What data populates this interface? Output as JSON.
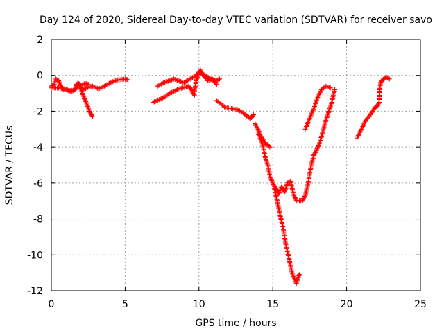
{
  "chart_data": {
    "type": "scatter",
    "title": "Day 124 of 2020, Sidereal Day-to-day VTEC variation (SDTVAR) for receiver savo",
    "xlabel": "GPS time / hours",
    "ylabel": "SDTVAR / TECUs",
    "xlim": [
      0,
      25
    ],
    "ylim": [
      -12,
      2
    ],
    "xticks": [
      0,
      5,
      10,
      15,
      20,
      25
    ],
    "yticks": [
      -12,
      -10,
      -8,
      -6,
      -4,
      -2,
      0,
      2
    ],
    "xtick_labels": [
      "0",
      "5",
      "10",
      "15",
      "20",
      "25"
    ],
    "ytick_labels": [
      "-12",
      "-10",
      "-8",
      "-6",
      "-4",
      "-2",
      "0",
      "2"
    ],
    "grid": true,
    "marker": "+",
    "series": [
      {
        "name": "SDTVAR",
        "color": "#ff0000",
        "segments": [
          [
            [
              0.0,
              -0.6
            ],
            [
              0.2,
              -0.5
            ],
            [
              0.3,
              -0.2
            ],
            [
              0.5,
              -0.3
            ],
            [
              0.7,
              -0.7
            ],
            [
              1.0,
              -0.8
            ],
            [
              1.3,
              -0.85
            ],
            [
              1.6,
              -0.8
            ],
            [
              1.7,
              -0.5
            ],
            [
              1.9,
              -0.6
            ],
            [
              2.1,
              -0.8
            ],
            [
              2.4,
              -0.7
            ],
            [
              2.8,
              -0.6
            ],
            [
              3.2,
              -0.75
            ],
            [
              3.6,
              -0.6
            ],
            [
              4.0,
              -0.4
            ],
            [
              4.5,
              -0.25
            ],
            [
              5.0,
              -0.2
            ],
            [
              5.2,
              -0.25
            ]
          ],
          [
            [
              0.0,
              -0.7
            ],
            [
              0.5,
              -0.7
            ],
            [
              1.0,
              -0.8
            ],
            [
              1.4,
              -0.9
            ],
            [
              1.7,
              -0.7
            ],
            [
              1.8,
              -0.4
            ],
            [
              2.0,
              -0.55
            ],
            [
              2.3,
              -0.45
            ],
            [
              2.5,
              -0.5
            ]
          ],
          [
            [
              1.9,
              -0.5
            ],
            [
              2.1,
              -1.0
            ],
            [
              2.3,
              -1.4
            ],
            [
              2.5,
              -1.8
            ],
            [
              2.7,
              -2.2
            ],
            [
              2.8,
              -2.3
            ]
          ],
          [
            [
              7.2,
              -0.6
            ],
            [
              7.6,
              -0.4
            ],
            [
              8.0,
              -0.3
            ],
            [
              8.3,
              -0.2
            ],
            [
              8.6,
              -0.3
            ],
            [
              9.0,
              -0.4
            ],
            [
              9.4,
              -0.2
            ],
            [
              9.8,
              0.0
            ],
            [
              10.1,
              0.3
            ],
            [
              10.2,
              0.1
            ],
            [
              10.5,
              -0.05
            ],
            [
              10.8,
              -0.2
            ],
            [
              11.0,
              -0.25
            ],
            [
              11.2,
              -0.3
            ],
            [
              11.4,
              -0.2
            ]
          ],
          [
            [
              6.9,
              -1.5
            ],
            [
              7.3,
              -1.35
            ],
            [
              7.7,
              -1.2
            ],
            [
              8.0,
              -1.0
            ],
            [
              8.3,
              -0.9
            ],
            [
              8.6,
              -0.75
            ],
            [
              8.9,
              -0.7
            ],
            [
              9.3,
              -0.6
            ],
            [
              9.5,
              -0.8
            ],
            [
              9.6,
              -1.0
            ],
            [
              9.7,
              -1.1
            ]
          ],
          [
            [
              9.7,
              -0.9
            ],
            [
              9.8,
              -0.3
            ],
            [
              10.0,
              0.1
            ],
            [
              10.1,
              0.2
            ],
            [
              10.3,
              0.0
            ],
            [
              10.6,
              -0.3
            ],
            [
              10.9,
              -0.2
            ],
            [
              11.2,
              -0.5
            ]
          ],
          [
            [
              11.2,
              -1.4
            ],
            [
              11.5,
              -1.6
            ],
            [
              11.8,
              -1.8
            ],
            [
              12.2,
              -1.85
            ],
            [
              12.6,
              -1.9
            ],
            [
              13.0,
              -2.1
            ],
            [
              13.3,
              -2.3
            ],
            [
              13.5,
              -2.4
            ],
            [
              13.7,
              -2.2
            ]
          ],
          [
            [
              13.8,
              -2.7
            ],
            [
              14.0,
              -3.0
            ],
            [
              14.2,
              -3.4
            ],
            [
              14.5,
              -3.8
            ],
            [
              14.7,
              -3.9
            ],
            [
              14.8,
              -4.0
            ]
          ],
          [
            [
              14.0,
              -3.2
            ],
            [
              14.3,
              -3.8
            ],
            [
              14.5,
              -4.6
            ],
            [
              14.7,
              -5.1
            ],
            [
              14.8,
              -5.6
            ],
            [
              15.0,
              -6.0
            ],
            [
              15.2,
              -6.3
            ],
            [
              15.4,
              -6.6
            ],
            [
              15.5,
              -6.4
            ],
            [
              15.6,
              -6.2
            ],
            [
              15.8,
              -6.5
            ],
            [
              16.0,
              -6.0
            ],
            [
              16.2,
              -5.9
            ],
            [
              16.4,
              -6.6
            ],
            [
              16.6,
              -7.0
            ],
            [
              17.0,
              -7.0
            ],
            [
              17.2,
              -6.7
            ],
            [
              17.4,
              -6.0
            ],
            [
              17.6,
              -5.0
            ],
            [
              17.8,
              -4.4
            ],
            [
              18.0,
              -4.1
            ],
            [
              18.2,
              -3.7
            ],
            [
              18.4,
              -3.1
            ],
            [
              18.6,
              -2.5
            ],
            [
              18.8,
              -2.0
            ],
            [
              19.0,
              -1.5
            ],
            [
              19.1,
              -1.1
            ],
            [
              19.2,
              -0.8
            ]
          ],
          [
            [
              15.1,
              -6.3
            ],
            [
              15.3,
              -7.0
            ],
            [
              15.5,
              -7.8
            ],
            [
              15.7,
              -8.5
            ],
            [
              15.9,
              -9.5
            ],
            [
              16.1,
              -10.2
            ],
            [
              16.3,
              -11.0
            ],
            [
              16.5,
              -11.4
            ],
            [
              16.6,
              -11.6
            ],
            [
              16.7,
              -11.3
            ],
            [
              16.8,
              -11.1
            ]
          ],
          [
            [
              17.2,
              -3.0
            ],
            [
              17.5,
              -2.4
            ],
            [
              17.8,
              -1.8
            ],
            [
              18.0,
              -1.3
            ],
            [
              18.3,
              -0.8
            ],
            [
              18.6,
              -0.6
            ],
            [
              18.9,
              -0.7
            ]
          ],
          [
            [
              20.7,
              -3.5
            ],
            [
              21.0,
              -3.0
            ],
            [
              21.3,
              -2.5
            ],
            [
              21.6,
              -2.2
            ],
            [
              21.9,
              -1.8
            ],
            [
              22.1,
              -1.7
            ],
            [
              22.2,
              -1.5
            ],
            [
              22.25,
              -0.8
            ],
            [
              22.3,
              -0.4
            ],
            [
              22.5,
              -0.2
            ],
            [
              22.7,
              -0.1
            ],
            [
              22.9,
              -0.2
            ]
          ]
        ]
      }
    ]
  }
}
